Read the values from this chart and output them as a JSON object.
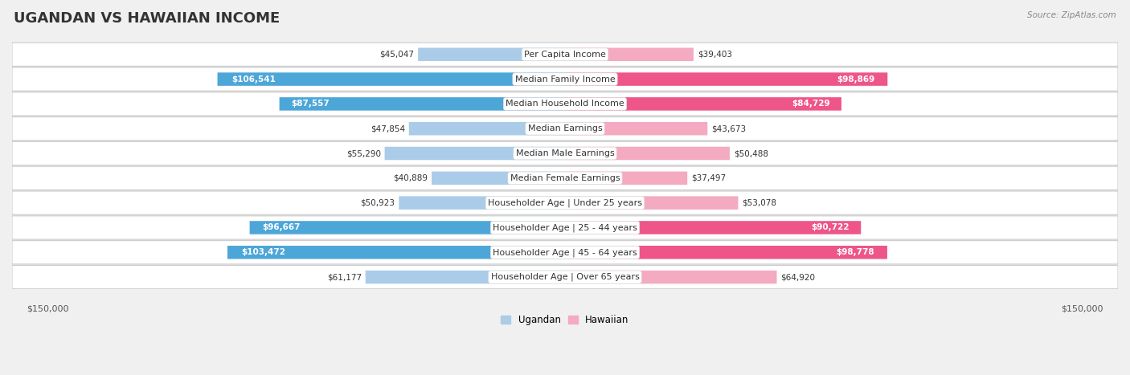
{
  "title": "UGANDAN VS HAWAIIAN INCOME",
  "source": "Source: ZipAtlas.com",
  "categories": [
    "Per Capita Income",
    "Median Family Income",
    "Median Household Income",
    "Median Earnings",
    "Median Male Earnings",
    "Median Female Earnings",
    "Householder Age | Under 25 years",
    "Householder Age | 25 - 44 years",
    "Householder Age | 45 - 64 years",
    "Householder Age | Over 65 years"
  ],
  "ugandan_values": [
    45047,
    106541,
    87557,
    47854,
    55290,
    40889,
    50923,
    96667,
    103472,
    61177
  ],
  "hawaiian_values": [
    39403,
    98869,
    84729,
    43673,
    50488,
    37497,
    53078,
    90722,
    98778,
    64920
  ],
  "ugandan_color_light": "#aacce8",
  "ugandan_color_dark": "#4da6d8",
  "hawaiian_color_light": "#f4aac0",
  "hawaiian_color_dark": "#ee5588",
  "ugandan_label": "Ugandan",
  "hawaiian_label": "Hawaiian",
  "max_value": 150000,
  "title_fontsize": 13,
  "label_fontsize": 8.0,
  "value_fontsize": 7.5,
  "axis_label": "$150,000",
  "dark_threshold": 65000,
  "fig_bg": "#f0f0f0",
  "row_bg_even": "#f8f8f8",
  "row_bg_odd": "#eeeeee"
}
